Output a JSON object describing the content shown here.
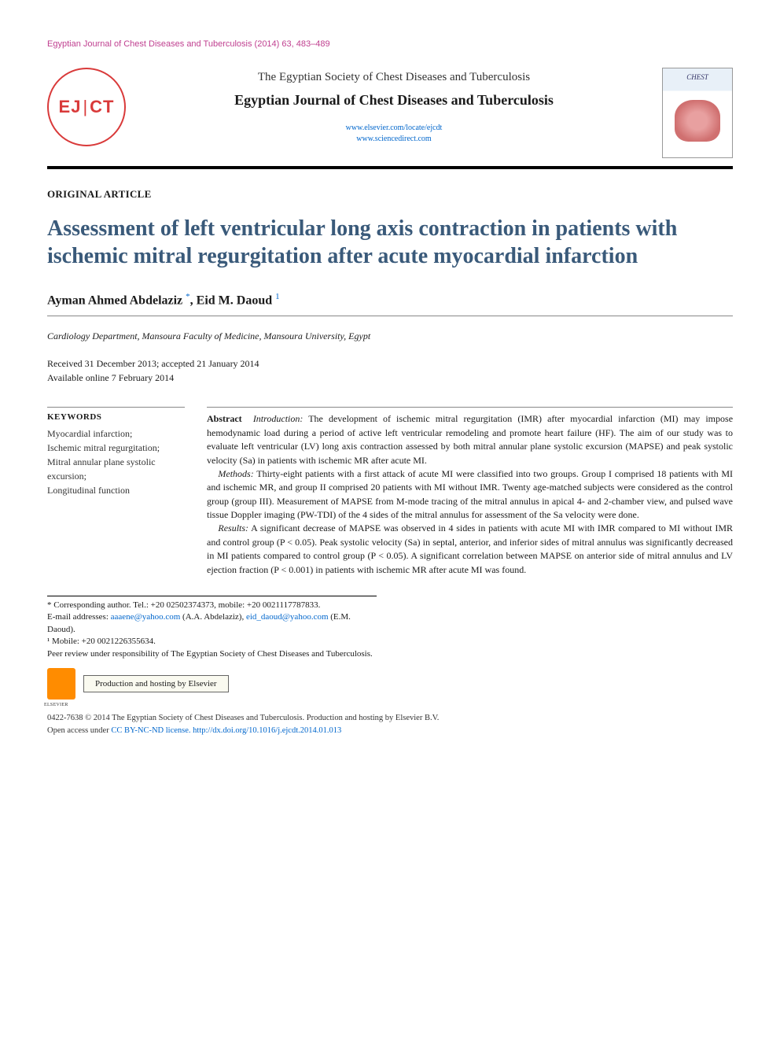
{
  "running_head": "Egyptian Journal of Chest Diseases and Tuberculosis (2014) 63, 483–489",
  "logo_text_left": "EJ",
  "logo_text_right": "CT",
  "society": "The Egyptian Society of Chest Diseases and Tuberculosis",
  "journal": "Egyptian Journal of Chest Diseases and Tuberculosis",
  "link1": "www.elsevier.com/locate/ejcdt",
  "link2": "www.sciencedirect.com",
  "article_type": "ORIGINAL ARTICLE",
  "title": "Assessment of left ventricular long axis contraction in patients with ischemic mitral regurgitation after acute myocardial infarction",
  "authors": {
    "a1": "Ayman Ahmed Abdelaziz",
    "a1_mark": "*",
    "sep": ", ",
    "a2": "Eid M. Daoud",
    "a2_mark": "1"
  },
  "affiliation": "Cardiology Department, Mansoura Faculty of Medicine, Mansoura University, Egypt",
  "dates_line1": "Received 31 December 2013; accepted 21 January 2014",
  "dates_line2": "Available online 7 February 2014",
  "keywords_head": "KEYWORDS",
  "keywords": "Myocardial infarction;\nIschemic mitral regurgitation;\nMitral annular plane systolic excursion;\nLongitudinal function",
  "abstract": {
    "lead": "Abstract",
    "intro_label": "Introduction:",
    "intro": " The development of ischemic mitral regurgitation (IMR) after myocardial infarction (MI) may impose hemodynamic load during a period of active left ventricular remodeling and promote heart failure (HF). The aim of our study was to evaluate left ventricular (LV) long axis contraction assessed by both mitral annular plane systolic excursion (MAPSE) and peak systolic velocity (Sa) in patients with ischemic MR after acute MI.",
    "methods_label": "Methods:",
    "methods": " Thirty-eight patients with a first attack of acute MI were classified into two groups. Group I comprised 18 patients with MI and ischemic MR, and group II comprised 20 patients with MI without IMR. Twenty age-matched subjects were considered as the control group (group III). Measurement of MAPSE from M-mode tracing of the mitral annulus in apical 4- and 2-chamber view, and pulsed wave tissue Doppler imaging (PW-TDI) of the 4 sides of the mitral annulus for assessment of the Sa velocity were done.",
    "results_label": "Results:",
    "results": " A significant decrease of MAPSE was observed in 4 sides in patients with acute MI with IMR compared to MI without IMR and control group (P < 0.05). Peak systolic velocity (Sa) in septal, anterior, and inferior sides of mitral annulus was significantly decreased in MI patients compared to control group (P < 0.05). A significant correlation between MAPSE on anterior side of mitral annulus and LV ejection fraction (P < 0.001) in patients with ischemic MR after acute MI was found."
  },
  "footnotes": {
    "corr": "* Corresponding author. Tel.: +20 02502374373, mobile: +20 0021117787833.",
    "email_label": "E-mail addresses: ",
    "email1": "aaaene@yahoo.com",
    "email1_who": " (A.A. Abdelaziz), ",
    "email2": "eid_daoud@yahoo.com",
    "email2_who": " (E.M. Daoud).",
    "mob": "¹ Mobile: +20 0021226355634.",
    "peer": "Peer review under responsibility of The Egyptian Society of Chest Diseases and Tuberculosis."
  },
  "hosting_text": "Production and hosting by Elsevier",
  "footer": {
    "line1": "0422-7638 © 2014 The Egyptian Society of Chest Diseases and Tuberculosis. Production and hosting by Elsevier B.V.",
    "line2a": "Open access under ",
    "license": "CC BY-NC-ND license.",
    "doi": "http://dx.doi.org/10.1016/j.ejcdt.2014.01.013"
  },
  "colors": {
    "running_head": "#c04090",
    "title": "#3a5a7a",
    "link": "#0066cc",
    "logo": "#d93a3a",
    "rule": "#000000"
  }
}
